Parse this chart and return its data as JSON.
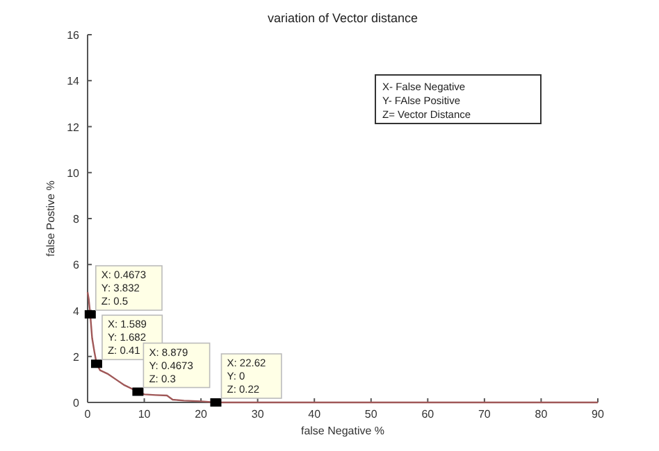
{
  "chart_data": {
    "type": "line",
    "title": "variation of Vector distance",
    "xlabel": "false Negative %",
    "ylabel": "false Postive %",
    "xlim": [
      0,
      90
    ],
    "xticks": [
      0,
      10,
      20,
      30,
      40,
      50,
      60,
      70,
      80,
      90
    ],
    "ylim": [
      0,
      16
    ],
    "yticks": [
      0,
      2,
      4,
      6,
      8,
      10,
      12,
      14,
      16
    ],
    "grid": false,
    "series": [
      {
        "color": "#a05858",
        "marker": "none",
        "line_style": "solid",
        "x": [
          0,
          0.2,
          0.4673,
          0.8,
          1.2,
          1.589,
          2.2,
          3.5,
          5,
          6.5,
          8.879,
          10,
          12,
          14,
          15,
          17,
          20,
          22.62,
          30,
          50,
          70,
          90
        ],
        "values": [
          4.8,
          4.5,
          3.832,
          2.8,
          2.2,
          1.682,
          1.4,
          1.25,
          1.0,
          0.75,
          0.4673,
          0.35,
          0.32,
          0.3,
          0.12,
          0.08,
          0.05,
          0,
          0,
          0,
          0,
          0
        ]
      },
      {
        "type": "scatter",
        "color": "#000000",
        "marker": "square",
        "x": [
          0.4673,
          1.589,
          8.879,
          22.62
        ],
        "values": [
          3.832,
          1.682,
          0.4673,
          0
        ]
      }
    ],
    "annotations": [
      "X- False Negative\nY- FAlse Positive\nZ= Vector Distance",
      {
        "text": "X: 0.4673\nY: 3.832\nZ: 0.5",
        "x": 0.4673,
        "y": 3.832
      },
      {
        "text": "X: 1.589\nY: 1.682\nZ: 0.41",
        "x": 1.589,
        "y": 1.682
      },
      {
        "text": "X: 8.879\nY: 0.4673\nZ: 0.3",
        "x": 8.879,
        "y": 0.4673
      },
      {
        "text": "X: 22.62\nY: 0\nZ: 0.22",
        "x": 22.62,
        "y": 0
      }
    ]
  }
}
